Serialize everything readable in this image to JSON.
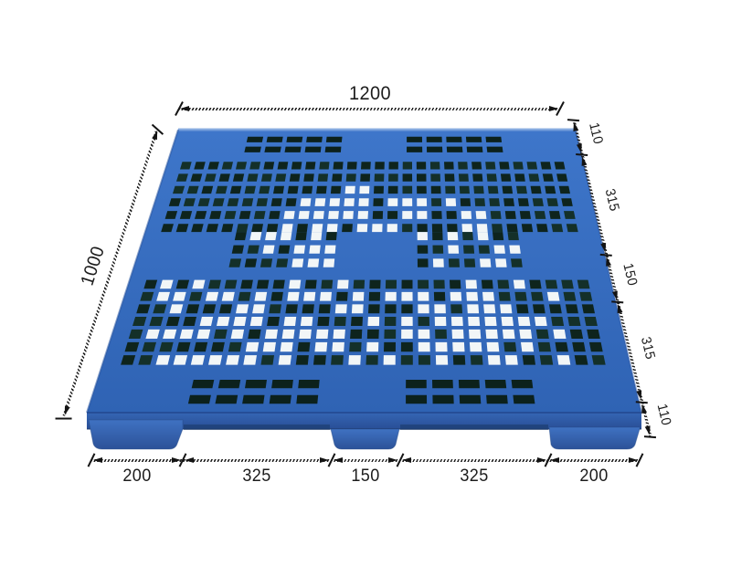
{
  "dimensions": {
    "top": {
      "label": "1200",
      "value": 1200
    },
    "left": {
      "label": "1000",
      "value": 1000
    },
    "right": {
      "segments": [
        {
          "label": "110",
          "value": 110
        },
        {
          "label": "315",
          "value": 315
        },
        {
          "label": "150",
          "value": 150
        },
        {
          "label": "315",
          "value": 315
        },
        {
          "label": "110",
          "value": 110
        }
      ]
    },
    "bottom": {
      "segments": [
        {
          "label": "200",
          "value": 200
        },
        {
          "label": "325",
          "value": 325
        },
        {
          "label": "150",
          "value": 150
        },
        {
          "label": "325",
          "value": 325
        },
        {
          "label": "200",
          "value": 200
        }
      ]
    }
  },
  "pallet": {
    "colors": {
      "deck_top": "#3e76ca",
      "deck_bottom": "#2f63b4",
      "edge_highlight": "#7aa3dd",
      "edge_shade": "#28539f",
      "side_band_top": "#3566b4",
      "side_band_bottom": "#294e96",
      "foot_top": "#3f72c2",
      "foot_bottom": "#2c5298",
      "hole_dark_a": "#0e241d",
      "hole_dark_b": "#143029",
      "hole_slot": "#0c211c",
      "hole_light": "#f2f6f7",
      "shadow": "#16355f"
    }
  },
  "annotation": {
    "line_color": "#1f1f1f",
    "text_color": "#1c1c1c"
  }
}
